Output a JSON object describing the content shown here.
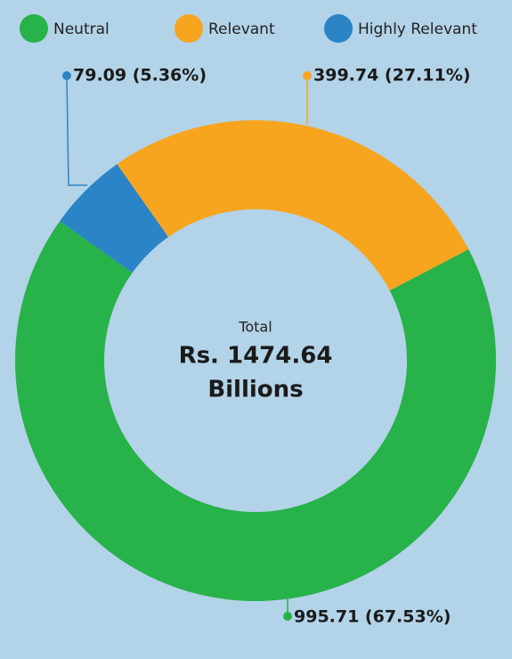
{
  "chart_data": {
    "type": "donut",
    "categories": [
      "Neutral",
      "Relevant",
      "Highly Relevant"
    ],
    "values": [
      995.71,
      399.74,
      79.09
    ],
    "value_labels": [
      "995.71 (67.53%)",
      "399.74 (27.11%)",
      "79.09 (5.36%)"
    ],
    "colors": [
      "#27b24a",
      "#f7a51e",
      "#2a84c6"
    ],
    "total_label": "Total",
    "total_value": "Rs. 1474.64",
    "total_unit": "Billions"
  }
}
